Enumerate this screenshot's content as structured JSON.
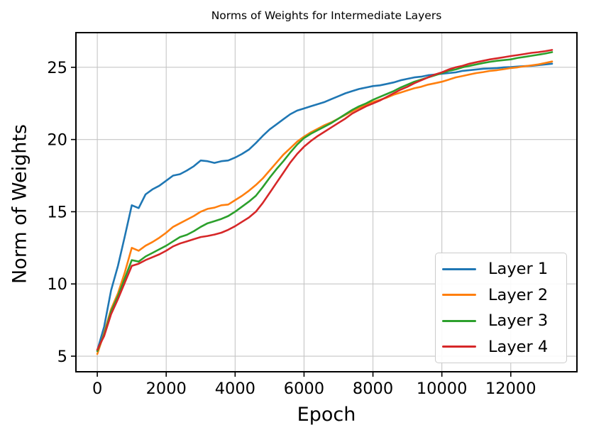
{
  "chart_data": {
    "type": "line",
    "title": "Norms of Weights for Intermediate Layers",
    "xlabel": "Epoch",
    "ylabel": "Norm of Weights",
    "xlim": [
      -620,
      13920
    ],
    "ylim": [
      3.92,
      27.4
    ],
    "xticks": [
      0,
      2000,
      4000,
      6000,
      8000,
      10000,
      12000
    ],
    "yticks": [
      5,
      10,
      15,
      20,
      25
    ],
    "grid": true,
    "grid_color": "#c6c6c6",
    "spine_color": "#000000",
    "legend_position": "lower right",
    "x": [
      0,
      200,
      400,
      600,
      800,
      1000,
      1200,
      1400,
      1600,
      1800,
      2000,
      2200,
      2400,
      2600,
      2800,
      3000,
      3200,
      3400,
      3600,
      3800,
      4000,
      4200,
      4400,
      4600,
      4800,
      5000,
      5200,
      5400,
      5600,
      5800,
      6000,
      6200,
      6400,
      6600,
      6800,
      7000,
      7200,
      7400,
      7600,
      7800,
      8000,
      8200,
      8400,
      8600,
      8800,
      9000,
      9200,
      9400,
      9600,
      9800,
      10000,
      10200,
      10400,
      10600,
      10800,
      11000,
      11200,
      11400,
      11600,
      11800,
      12000,
      12200,
      12400,
      12600,
      12800,
      13000,
      13200
    ],
    "series": [
      {
        "name": "Layer 1",
        "color": "#1f77b4",
        "values": [
          5.4,
          7.05,
          9.55,
          11.25,
          13.3,
          15.45,
          15.25,
          16.2,
          16.55,
          16.8,
          17.15,
          17.5,
          17.6,
          17.85,
          18.15,
          18.55,
          18.5,
          18.38,
          18.5,
          18.55,
          18.75,
          19.0,
          19.3,
          19.75,
          20.25,
          20.7,
          21.05,
          21.4,
          21.75,
          22.0,
          22.15,
          22.3,
          22.45,
          22.6,
          22.8,
          23.0,
          23.2,
          23.35,
          23.5,
          23.6,
          23.7,
          23.75,
          23.85,
          23.95,
          24.1,
          24.2,
          24.3,
          24.35,
          24.45,
          24.5,
          24.55,
          24.6,
          24.65,
          24.75,
          24.8,
          24.85,
          24.9,
          24.92,
          24.95,
          25.0,
          25.02,
          25.05,
          25.08,
          25.1,
          25.15,
          25.2,
          25.25
        ]
      },
      {
        "name": "Layer 2",
        "color": "#ff7f0e",
        "values": [
          5.15,
          6.6,
          8.25,
          9.35,
          10.8,
          12.5,
          12.3,
          12.65,
          12.9,
          13.2,
          13.55,
          13.95,
          14.2,
          14.45,
          14.7,
          15.0,
          15.2,
          15.28,
          15.45,
          15.5,
          15.8,
          16.1,
          16.45,
          16.85,
          17.3,
          17.85,
          18.4,
          18.95,
          19.4,
          19.85,
          20.2,
          20.5,
          20.75,
          21.0,
          21.2,
          21.45,
          21.7,
          21.95,
          22.2,
          22.4,
          22.6,
          22.75,
          22.9,
          23.1,
          23.25,
          23.4,
          23.55,
          23.65,
          23.8,
          23.9,
          24.0,
          24.15,
          24.3,
          24.4,
          24.5,
          24.6,
          24.67,
          24.75,
          24.8,
          24.87,
          24.95,
          25.0,
          25.07,
          25.13,
          25.2,
          25.3,
          25.4
        ]
      },
      {
        "name": "Layer 3",
        "color": "#2ca02c",
        "values": [
          5.35,
          6.5,
          8.1,
          9.15,
          10.4,
          11.65,
          11.55,
          11.9,
          12.15,
          12.4,
          12.65,
          12.95,
          13.25,
          13.4,
          13.65,
          13.95,
          14.2,
          14.35,
          14.5,
          14.7,
          15.0,
          15.35,
          15.7,
          16.1,
          16.7,
          17.35,
          17.95,
          18.5,
          19.1,
          19.65,
          20.1,
          20.4,
          20.65,
          20.9,
          21.15,
          21.45,
          21.75,
          22.05,
          22.3,
          22.5,
          22.75,
          22.95,
          23.15,
          23.35,
          23.6,
          23.8,
          24.0,
          24.15,
          24.3,
          24.45,
          24.6,
          24.75,
          24.85,
          25.0,
          25.1,
          25.2,
          25.3,
          25.38,
          25.45,
          25.5,
          25.55,
          25.65,
          25.72,
          25.8,
          25.87,
          25.95,
          26.05
        ]
      },
      {
        "name": "Layer 4",
        "color": "#d62728",
        "values": [
          5.45,
          6.4,
          7.9,
          8.95,
          10.1,
          11.25,
          11.4,
          11.65,
          11.85,
          12.05,
          12.3,
          12.6,
          12.8,
          12.95,
          13.1,
          13.25,
          13.32,
          13.42,
          13.55,
          13.75,
          14.0,
          14.3,
          14.6,
          15.0,
          15.6,
          16.3,
          17.0,
          17.7,
          18.4,
          19.0,
          19.5,
          19.9,
          20.25,
          20.55,
          20.85,
          21.15,
          21.45,
          21.8,
          22.05,
          22.3,
          22.5,
          22.7,
          22.95,
          23.2,
          23.45,
          23.65,
          23.9,
          24.1,
          24.3,
          24.5,
          24.65,
          24.85,
          25.0,
          25.1,
          25.25,
          25.35,
          25.45,
          25.55,
          25.62,
          25.7,
          25.78,
          25.85,
          25.92,
          26.0,
          26.05,
          26.12,
          26.2
        ]
      }
    ]
  }
}
